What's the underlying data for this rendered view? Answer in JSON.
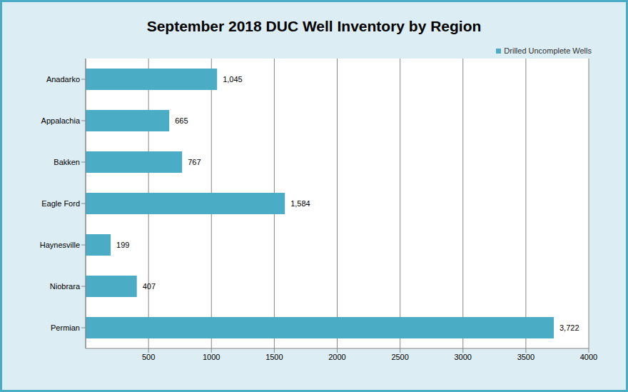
{
  "chart_data": {
    "type": "bar",
    "title": "September 2018 DUC Well Inventory by Region",
    "orientation": "horizontal",
    "categories": [
      "Anadarko",
      "Appalachia",
      "Bakken",
      "Eagle Ford",
      "Haynesville",
      "Niobrara",
      "Permian"
    ],
    "series": [
      {
        "name": "Drilled Uncomplete Wells",
        "color": "#4bacc6",
        "values": [
          1045,
          665,
          767,
          1584,
          199,
          407,
          3722
        ],
        "value_labels": [
          "1,045",
          "665",
          "767",
          "1,584",
          "199",
          "407",
          "3,722"
        ]
      }
    ],
    "xlim": [
      0,
      4000
    ],
    "xticks": [
      500,
      1000,
      1500,
      2000,
      2500,
      3000,
      3500,
      4000
    ],
    "grid": true,
    "data_labels": true,
    "legend": "top-right"
  }
}
